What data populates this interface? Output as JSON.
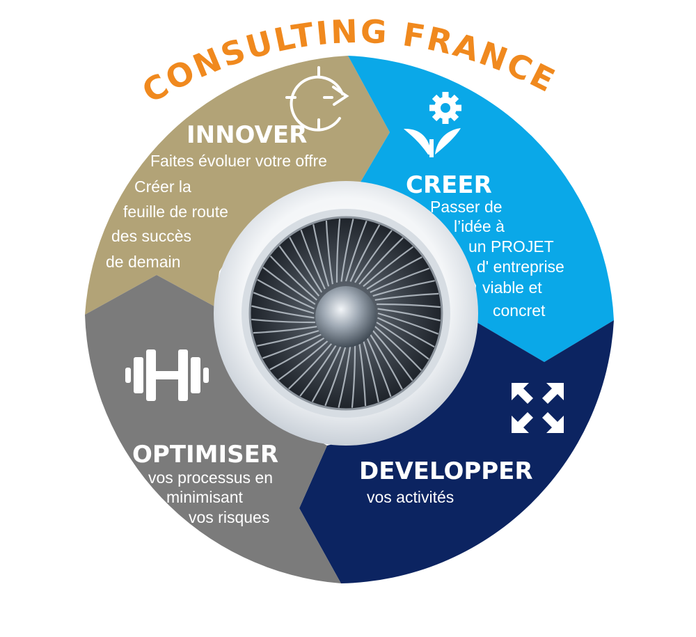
{
  "title": "CONSULTING FRANCE",
  "colors": {
    "title": "#f0891e",
    "innover": "#b2a377",
    "creer": "#0aa8e8",
    "developper": "#0c2461",
    "optimiser": "#7b7b7b"
  },
  "segments": {
    "innover": {
      "heading": "INNOVER",
      "icon": "target-cycle-icon",
      "lines": [
        "Faites évoluer votre offre",
        "Créer la",
        "feuille de route",
        "des succès",
        "de demain"
      ]
    },
    "creer": {
      "heading": "CREER",
      "icon": "plant-gear-icon",
      "lines": [
        "Passer de",
        "l’idée à",
        "un PROJET",
        "d' entreprise",
        "viable et",
        "concret"
      ]
    },
    "developper": {
      "heading": "DEVELOPPER",
      "icon": "expand-arrows-icon",
      "lines": [
        "vos activités"
      ]
    },
    "optimiser": {
      "heading": "OPTIMISER",
      "icon": "dumbbell-icon",
      "lines": [
        "vos processus en",
        "minimisant",
        "vos risques"
      ]
    }
  },
  "center": {
    "icon": "jet-engine-icon"
  }
}
